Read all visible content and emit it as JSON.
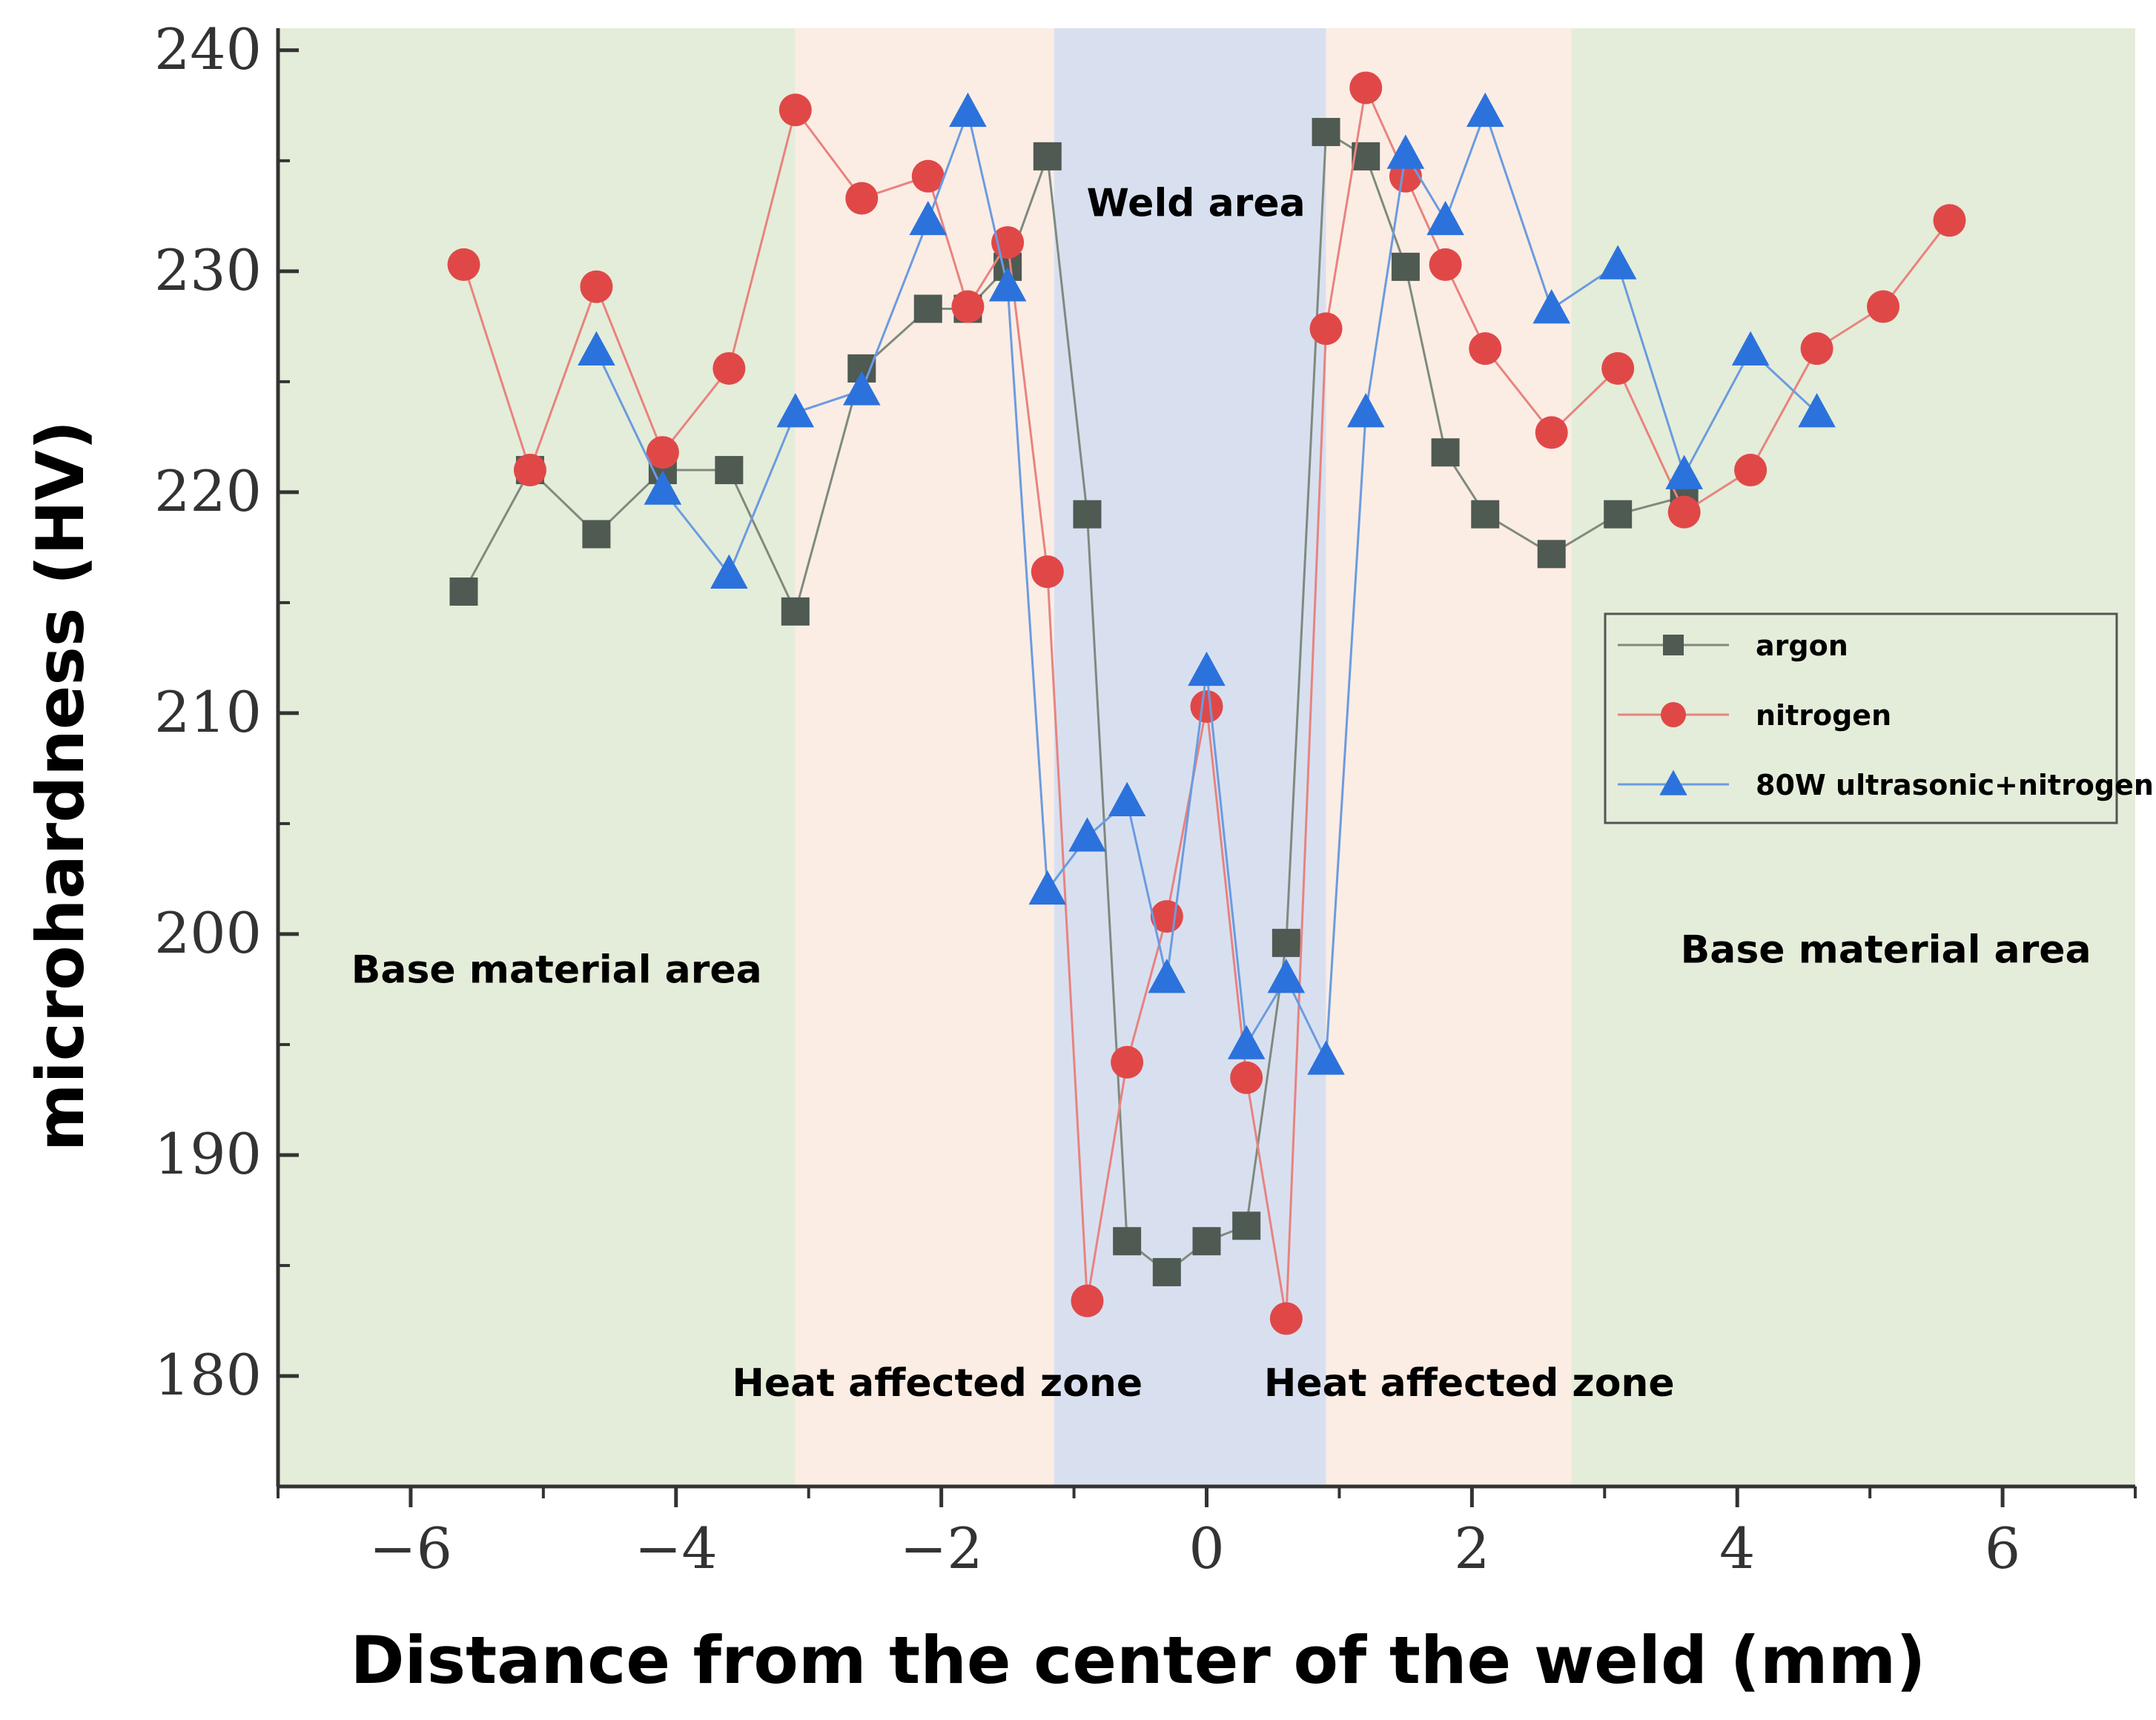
{
  "chart_data": {
    "type": "line",
    "title": "",
    "xlabel": "Distance from the center of the weld (mm)",
    "ylabel": "microhardness (HV)",
    "xlim": [
      -7,
      7
    ],
    "ylim": [
      175,
      241
    ],
    "xticks": [
      -6,
      -4,
      -2,
      0,
      2,
      4,
      6
    ],
    "xtick_labels": [
      "−6",
      "−4",
      "−2",
      "0",
      "2",
      "4",
      "6"
    ],
    "yticks": [
      180,
      190,
      200,
      210,
      220,
      230,
      240
    ],
    "ytick_labels": [
      "180",
      "190",
      "200",
      "210",
      "220",
      "230",
      "240"
    ],
    "grid": false,
    "legend_position": "right",
    "regions": [
      {
        "name": "Base material area",
        "from": -7,
        "to": -3.1,
        "color": "#e4edd9"
      },
      {
        "name": "Heat affected zone",
        "from": -3.1,
        "to": -1.15,
        "color": "#fbede4"
      },
      {
        "name": "Weld area",
        "from": -1.15,
        "to": 0.9,
        "color": "#d8e0f0"
      },
      {
        "name": "Heat affected zone",
        "from": 0.9,
        "to": 2.75,
        "color": "#fbede4"
      },
      {
        "name": "Base material area",
        "from": 2.75,
        "to": 7,
        "color": "#e4edd9"
      }
    ],
    "annotations": [
      {
        "text": "Base material area",
        "x": -4.9,
        "y": 197.8
      },
      {
        "text": "Weld area",
        "x": -0.08,
        "y": 232.5
      },
      {
        "text": "Heat affected zone",
        "x": -2.03,
        "y": 179.1
      },
      {
        "text": "Heat affected zone",
        "x": 1.98,
        "y": 179.1
      },
      {
        "text": "Base material area",
        "x": 5.12,
        "y": 198.7
      }
    ],
    "series": [
      {
        "name": "argon",
        "marker": "square",
        "line_color": "#7f8a7f",
        "marker_color": "#4e5a52",
        "x": [
          -5.6,
          -5.1,
          -4.6,
          -4.1,
          -3.6,
          -3.1,
          -2.6,
          -2.1,
          -1.8,
          -1.5,
          -1.2,
          -0.9,
          -0.6,
          -0.3,
          0.0,
          0.3,
          0.6,
          0.9,
          1.2,
          1.5,
          1.8,
          2.1,
          2.6,
          3.1,
          3.6
        ],
        "y": [
          215.5,
          221.0,
          218.1,
          221.0,
          221.0,
          214.6,
          225.6,
          228.3,
          228.3,
          230.2,
          235.2,
          219.0,
          186.1,
          184.7,
          186.1,
          186.8,
          199.6,
          236.3,
          235.2,
          230.2,
          221.8,
          219.0,
          217.2,
          219.0,
          219.8
        ]
      },
      {
        "name": "nitrogen",
        "marker": "circle",
        "line_color": "#e8837f",
        "marker_color": "#e04848",
        "x": [
          -5.6,
          -5.1,
          -4.6,
          -4.1,
          -3.6,
          -3.1,
          -2.6,
          -2.1,
          -1.8,
          -1.5,
          -1.2,
          -0.9,
          -0.6,
          -0.3,
          0.0,
          0.3,
          0.6,
          0.9,
          1.2,
          1.5,
          1.8,
          2.1,
          2.6,
          3.1,
          3.6,
          4.1,
          4.6,
          5.1,
          5.6
        ],
        "y": [
          230.3,
          221.0,
          229.3,
          221.8,
          225.6,
          237.3,
          233.3,
          234.3,
          228.4,
          231.3,
          216.4,
          183.4,
          194.2,
          200.8,
          210.3,
          193.5,
          182.6,
          227.4,
          238.3,
          234.3,
          230.3,
          226.5,
          222.7,
          225.6,
          219.1,
          221.0,
          226.5,
          228.4,
          232.3
        ]
      },
      {
        "name": "80W ultrasonic+nitrogen",
        "marker": "triangle",
        "line_color": "#6b9be0",
        "marker_color": "#2c72dc",
        "x": [
          -4.6,
          -4.1,
          -3.6,
          -3.1,
          -2.6,
          -2.1,
          -1.8,
          -1.5,
          -1.2,
          -0.9,
          -0.6,
          -0.3,
          0.0,
          0.3,
          0.6,
          0.9,
          1.2,
          1.5,
          1.8,
          2.1,
          2.6,
          3.1,
          3.6,
          4.1,
          4.6
        ],
        "y": [
          226.4,
          220.1,
          216.3,
          223.6,
          224.6,
          232.3,
          237.2,
          229.3,
          202.0,
          204.4,
          206.0,
          198.0,
          211.9,
          195.0,
          198.0,
          194.3,
          223.6,
          235.3,
          232.3,
          237.2,
          228.3,
          230.3,
          220.8,
          226.4,
          223.6
        ]
      }
    ]
  }
}
